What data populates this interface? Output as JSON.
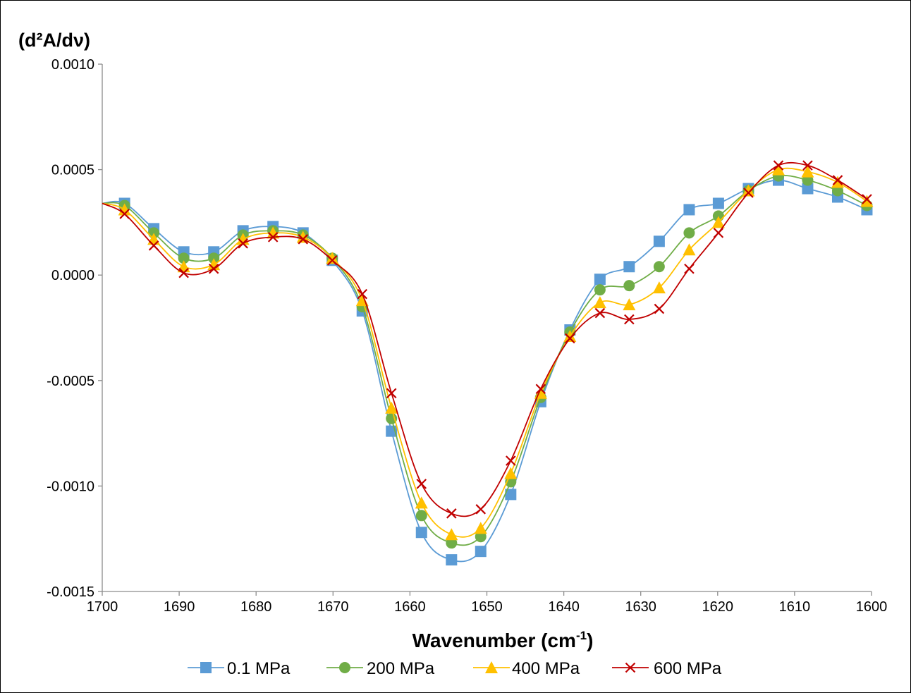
{
  "chart_data": {
    "type": "line",
    "ylabel_main": "(d²A/dν)",
    "xlabel_main": "Wavenumber (cm",
    "xlabel_sup": "-1",
    "xlabel_end": ")",
    "xlim": [
      1700,
      1600
    ],
    "ylim": [
      -0.0015,
      0.001
    ],
    "x_ticks": [
      1700,
      1690,
      1680,
      1670,
      1660,
      1650,
      1640,
      1630,
      1620,
      1610,
      1600
    ],
    "y_ticks": [
      0.001,
      0.0005,
      0.0,
      -0.0005,
      -0.001,
      -0.0015
    ],
    "y_tick_labels": [
      "0.0010",
      "0.0005",
      "0.0000",
      "-0.0005",
      "-0.0010",
      "-0.0015"
    ],
    "grid": false,
    "legend_position": "bottom",
    "x": [
      1697.1,
      1693.3,
      1689.4,
      1685.5,
      1681.7,
      1677.8,
      1673.9,
      1670.1,
      1666.2,
      1662.4,
      1658.5,
      1654.6,
      1650.8,
      1646.9,
      1643.0,
      1639.2,
      1635.3,
      1631.5,
      1627.6,
      1623.7,
      1619.9,
      1616.0,
      1612.1,
      1608.3,
      1604.4,
      1600.6
    ],
    "series": [
      {
        "name": "0.1 MPa",
        "color": "#5B9BD5",
        "marker": "square",
        "values": [
          0.00034,
          0.00022,
          0.00011,
          0.00011,
          0.00021,
          0.00023,
          0.0002,
          7e-05,
          -0.00017,
          -0.00074,
          -0.00122,
          -0.00135,
          -0.00131,
          -0.00104,
          -0.0006,
          -0.00026,
          -2e-05,
          4e-05,
          0.00016,
          0.00031,
          0.00034,
          0.00041,
          0.00045,
          0.00041,
          0.00037,
          0.00031
        ]
      },
      {
        "name": "200 MPa",
        "color": "#70AD47",
        "marker": "circle",
        "values": [
          0.00033,
          0.0002,
          8e-05,
          8e-05,
          0.00019,
          0.00021,
          0.00019,
          8e-05,
          -0.00015,
          -0.00068,
          -0.00114,
          -0.00127,
          -0.00124,
          -0.00098,
          -0.00058,
          -0.00027,
          -7e-05,
          -5e-05,
          4e-05,
          0.0002,
          0.00028,
          0.0004,
          0.00047,
          0.00045,
          0.0004,
          0.00033
        ]
      },
      {
        "name": "400 MPa",
        "color": "#FFC000",
        "marker": "triangle",
        "values": [
          0.00031,
          0.00017,
          4e-05,
          5e-05,
          0.00017,
          0.0002,
          0.00018,
          8e-05,
          -0.00012,
          -0.00063,
          -0.00108,
          -0.00123,
          -0.0012,
          -0.00094,
          -0.00056,
          -0.00029,
          -0.00013,
          -0.00014,
          -6e-05,
          0.00012,
          0.00025,
          0.0004,
          0.0005,
          0.00049,
          0.00044,
          0.00035
        ]
      },
      {
        "name": "600 MPa",
        "color": "#C00000",
        "marker": "x",
        "values": [
          0.00029,
          0.00014,
          1e-05,
          3e-05,
          0.00015,
          0.00018,
          0.00017,
          7e-05,
          -9e-05,
          -0.00056,
          -0.00099,
          -0.00113,
          -0.00111,
          -0.00088,
          -0.00054,
          -0.0003,
          -0.00018,
          -0.00021,
          -0.00016,
          3e-05,
          0.0002,
          0.00039,
          0.00052,
          0.00052,
          0.00045,
          0.00036
        ]
      }
    ]
  }
}
